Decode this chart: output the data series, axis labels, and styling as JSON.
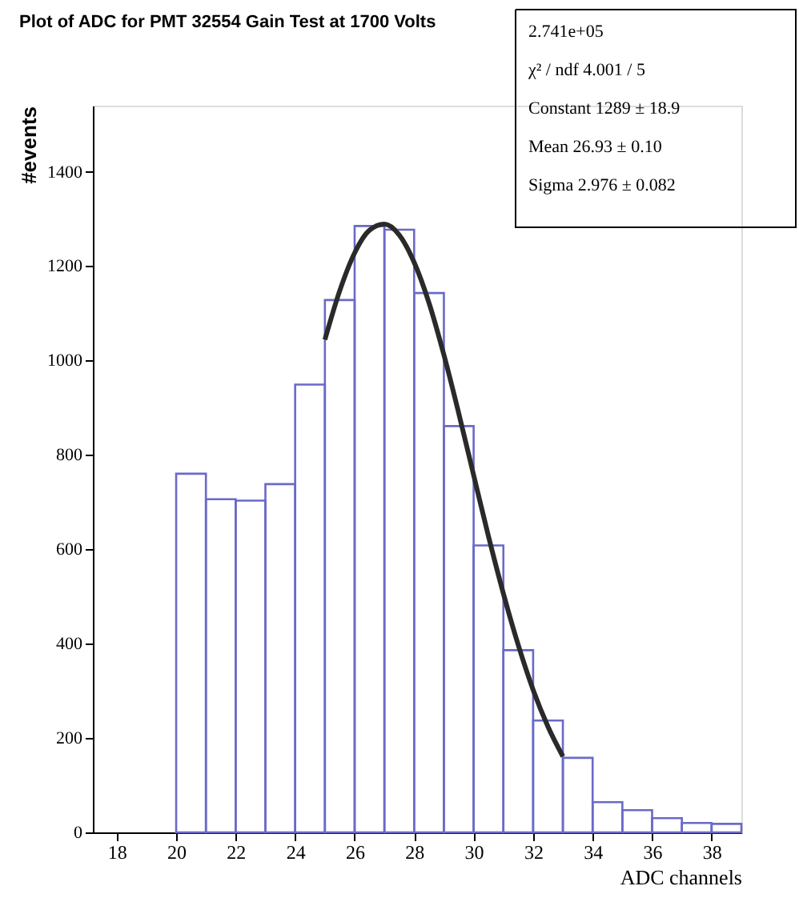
{
  "chart_data": {
    "type": "histogram",
    "title": "Plot of ADC for PMT 32554 Gain Test at 1700 Volts",
    "xlabel": "ADC channels",
    "ylabel": "#events",
    "bins": [
      20,
      21,
      22,
      23,
      24,
      25,
      26,
      27,
      28,
      29,
      30,
      31,
      32,
      33,
      34,
      35,
      36,
      37,
      38,
      39
    ],
    "values": [
      760,
      706,
      703,
      738,
      949,
      1128,
      1285,
      1277,
      1143,
      861,
      608,
      386,
      237,
      158,
      64,
      47,
      30,
      20,
      18
    ],
    "color": "#6a6ac8",
    "series": [
      {
        "type": "line",
        "color": "#2a2a2a",
        "x": [
          25,
          25.5,
          26,
          26.5,
          27,
          27.5,
          28,
          28.5,
          29,
          29.5,
          30,
          30.5,
          31,
          31.5,
          32,
          32.5,
          33
        ],
        "values": [
          1044,
          1148,
          1228,
          1276,
          1289,
          1266,
          1208,
          1122,
          1012,
          888,
          757,
          627,
          506,
          397,
          302,
          224,
          161
        ]
      }
    ],
    "xlim": [
      17.2,
      39
    ],
    "xticks": [
      18,
      20,
      22,
      24,
      26,
      28,
      30,
      32,
      34,
      36,
      38
    ],
    "ylim": [
      0,
      1540
    ],
    "yticks": [
      0,
      200,
      400,
      600,
      800,
      1000,
      1200,
      1400
    ],
    "annotations": [
      "2.741e+05",
      "χ² / ndf   4.001 / 5",
      "Constant   1289 ± 18.9",
      "Mean   26.93 ± 0.10",
      "Sigma   2.976 ± 0.082"
    ],
    "grid": false,
    "line_style": "solid",
    "marker": "none"
  }
}
